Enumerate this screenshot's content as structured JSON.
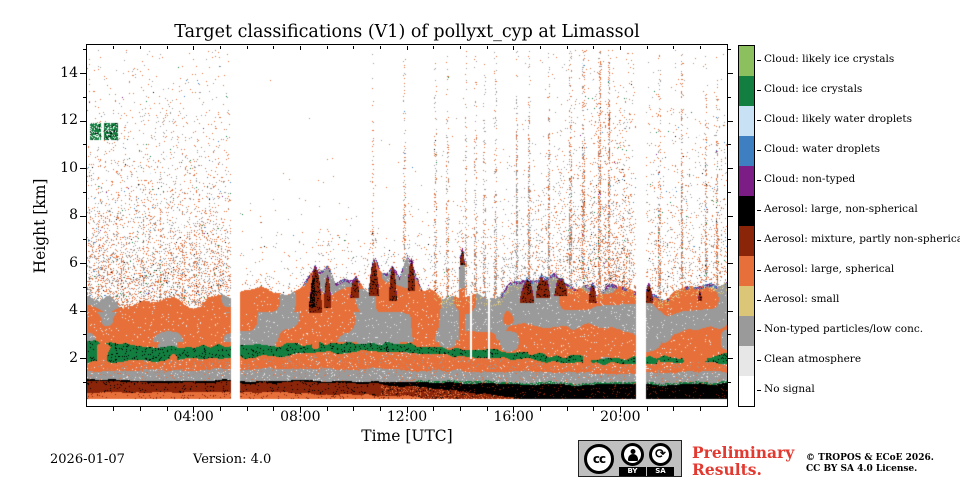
{
  "figure": {
    "title": "Target classifications (V1) of pollyxt_cyp at Limassol",
    "xlabel": "Time [UTC]",
    "ylabel": "Height [km]"
  },
  "footer": {
    "date": "2026-01-07",
    "version_label": "Version: 4.0",
    "preliminary_line1": "Preliminary",
    "preliminary_line2": "Results.",
    "preliminary_color": "#e23a31",
    "copyright_line1": "© TROPOS & ECoE 2026.",
    "copyright_line2": "CC BY SA 4.0 License.",
    "cc": {
      "cc_text": "cc",
      "sa_icon_text": "⟳",
      "by_label": "BY",
      "sa_label": "SA"
    }
  },
  "chart_data": {
    "type": "heatmap",
    "title": "Target classifications (V1) of pollyxt_cyp at Limassol",
    "xlabel": "Time [UTC]",
    "ylabel": "Height [km]",
    "x_axis": {
      "range_hours": [
        0,
        24
      ],
      "major_ticks": [
        {
          "hour": 4,
          "label": "04:00"
        },
        {
          "hour": 8,
          "label": "08:00"
        },
        {
          "hour": 12,
          "label": "12:00"
        },
        {
          "hour": 16,
          "label": "16:00"
        },
        {
          "hour": 20,
          "label": "20:00"
        }
      ],
      "minor_every_hours": 1
    },
    "y_axis": {
      "range_km": [
        0,
        15.2
      ],
      "major_ticks": [
        2,
        4,
        6,
        8,
        10,
        12,
        14
      ],
      "minor_every_km": 1
    },
    "legend_position": "right",
    "grid": false,
    "categories": [
      {
        "label": "Cloud: likely ice crystals",
        "color": "#8cbf5e"
      },
      {
        "label": "Cloud: ice crystals",
        "color": "#127e3f"
      },
      {
        "label": "Cloud: likely water droplets",
        "color": "#c9e1f5"
      },
      {
        "label": "Cloud: water droplets",
        "color": "#3d7fc1"
      },
      {
        "label": "Cloud: non-typed",
        "color": "#7c1d85"
      },
      {
        "label": "Aerosol: large, non-spherical",
        "color": "#000000"
      },
      {
        "label": "Aerosol: mixture, partly non-spherical",
        "color": "#8a2509"
      },
      {
        "label": "Aerosol: large, spherical",
        "color": "#e7703a"
      },
      {
        "label": "Aerosol: small",
        "color": "#dbc577"
      },
      {
        "label": "Non-typed particles/low conc.",
        "color": "#9a9a9a"
      },
      {
        "label": "Clean atmosphere",
        "color": "#e7e7e7"
      },
      {
        "label": "No signal",
        "color": "#ffffff"
      }
    ],
    "data_gaps_hours": [
      [
        5.38,
        5.72
      ],
      [
        20.55,
        20.95
      ]
    ],
    "thin_gaps_hours": [
      [
        14.33,
        14.42
      ],
      [
        15.02,
        15.09
      ]
    ],
    "layers": {
      "floor_km": 0.32,
      "layer_top_km": [
        [
          0,
          4.6
        ],
        [
          1,
          4.4
        ],
        [
          2,
          4.2
        ],
        [
          3,
          4.5
        ],
        [
          4,
          4.3
        ],
        [
          5,
          4.5
        ],
        [
          5.8,
          4.6
        ],
        [
          6.5,
          4.9
        ],
        [
          7,
          4.7
        ],
        [
          7.5,
          4.8
        ],
        [
          8,
          5.0
        ],
        [
          8.5,
          5.8
        ],
        [
          9,
          5.9
        ],
        [
          9.3,
          5.0
        ],
        [
          9.8,
          5.3
        ],
        [
          10.1,
          5.6
        ],
        [
          10.5,
          5.0
        ],
        [
          10.8,
          6.1
        ],
        [
          11,
          5.6
        ],
        [
          11.4,
          5.9
        ],
        [
          11.7,
          5.2
        ],
        [
          12,
          6.2
        ],
        [
          12.3,
          5.6
        ],
        [
          12.6,
          4.9
        ],
        [
          13,
          4.7
        ],
        [
          13.5,
          4.5
        ],
        [
          14,
          4.4
        ],
        [
          14.5,
          4.6
        ],
        [
          15,
          4.7
        ],
        [
          15.5,
          4.8
        ],
        [
          16,
          5.1
        ],
        [
          16.5,
          5.3
        ],
        [
          17,
          5.4
        ],
        [
          17.5,
          5.5
        ],
        [
          18,
          5.3
        ],
        [
          18.5,
          5.1
        ],
        [
          19,
          4.9
        ],
        [
          19.5,
          5.0
        ],
        [
          20,
          5.1
        ],
        [
          20.5,
          4.8
        ],
        [
          21,
          4.7
        ],
        [
          21.5,
          4.6
        ],
        [
          22,
          4.7
        ],
        [
          22.5,
          4.8
        ],
        [
          23,
          5.0
        ],
        [
          23.5,
          5.1
        ],
        [
          24,
          5.3
        ]
      ],
      "green_top_km": [
        [
          0,
          2.75
        ],
        [
          2,
          2.6
        ],
        [
          4,
          2.5
        ],
        [
          6,
          2.55
        ],
        [
          8,
          2.6
        ],
        [
          10,
          2.7
        ],
        [
          12,
          2.6
        ],
        [
          13,
          2.5
        ],
        [
          14,
          2.4
        ],
        [
          15,
          2.35
        ],
        [
          16,
          2.3
        ],
        [
          17,
          2.2
        ],
        [
          18,
          2.1
        ],
        [
          19,
          2.05
        ],
        [
          20,
          2.0
        ],
        [
          21,
          2.05
        ],
        [
          22,
          2.1
        ],
        [
          24,
          2.15
        ]
      ],
      "green_bot_km": [
        [
          0,
          1.9
        ],
        [
          2,
          1.95
        ],
        [
          4,
          2.0
        ],
        [
          6,
          2.1
        ],
        [
          8,
          2.2
        ],
        [
          10,
          2.3
        ],
        [
          12,
          2.25
        ],
        [
          14,
          2.1
        ],
        [
          16,
          2.0
        ],
        [
          18,
          1.85
        ],
        [
          20,
          1.8
        ],
        [
          22,
          1.8
        ],
        [
          24,
          1.85
        ]
      ],
      "gray_top_km": [
        [
          0,
          1.5
        ],
        [
          4,
          1.55
        ],
        [
          8,
          1.6
        ],
        [
          12,
          1.55
        ],
        [
          16,
          1.45
        ],
        [
          20,
          1.4
        ],
        [
          24,
          1.45
        ]
      ],
      "black_top_km": [
        [
          0,
          1.12
        ],
        [
          4,
          1.1
        ],
        [
          8,
          1.08
        ],
        [
          11,
          1.05
        ],
        [
          13,
          1.0
        ],
        [
          15,
          0.98
        ],
        [
          16,
          0.95
        ],
        [
          18,
          0.92
        ],
        [
          20,
          0.9
        ],
        [
          22,
          0.92
        ],
        [
          24,
          0.95
        ]
      ],
      "black_width_km": [
        [
          0,
          0.07
        ],
        [
          8,
          0.08
        ],
        [
          11,
          0.1
        ],
        [
          12,
          0.18
        ],
        [
          13,
          0.25
        ],
        [
          14,
          0.3
        ],
        [
          15,
          0.45
        ],
        [
          16,
          0.6
        ],
        [
          17,
          0.7
        ],
        [
          18,
          0.72
        ],
        [
          20,
          0.7
        ],
        [
          22,
          0.68
        ],
        [
          24,
          0.72
        ]
      ],
      "orange_bottom_top_km": [
        [
          0,
          0.62
        ],
        [
          2,
          0.6
        ],
        [
          4,
          0.58
        ],
        [
          6,
          0.6
        ],
        [
          8,
          0.55
        ],
        [
          10,
          0.5
        ],
        [
          11,
          0.45
        ],
        [
          12,
          0.4
        ],
        [
          12.5,
          0.35
        ],
        [
          13,
          0.3
        ],
        [
          13.5,
          0.25
        ],
        [
          14,
          0.2
        ],
        [
          24,
          0.2
        ]
      ]
    },
    "plumes_maroon": [
      [
        8.3,
        8.8,
        3.9,
        5.9
      ],
      [
        8.85,
        9.15,
        4.1,
        5.5
      ],
      [
        9.85,
        10.2,
        4.5,
        5.5
      ],
      [
        10.55,
        10.95,
        4.6,
        6.1
      ],
      [
        11.3,
        11.6,
        4.4,
        5.9
      ],
      [
        12.0,
        12.3,
        4.8,
        6.3
      ],
      [
        13.95,
        14.15,
        5.9,
        6.7
      ],
      [
        16.2,
        16.75,
        4.3,
        5.4
      ],
      [
        16.8,
        17.35,
        4.5,
        5.6
      ],
      [
        17.5,
        18.0,
        4.6,
        5.5
      ],
      [
        18.8,
        19.1,
        4.3,
        5.1
      ],
      [
        20.9,
        21.2,
        4.3,
        5.2
      ],
      [
        22.9,
        23.05,
        4.4,
        4.9
      ]
    ],
    "cloud_fringe_windows_hours": [
      [
        8,
        13
      ],
      [
        15.5,
        21.8
      ],
      [
        22.4,
        24
      ]
    ],
    "green_cloud_patch": {
      "t0": 0.08,
      "t1": 1.15,
      "h0": 11.2,
      "h1": 11.95,
      "gap": [
        0.52,
        0.63
      ]
    },
    "speckles": {
      "density": [
        [
          0,
          1.0
        ],
        [
          4,
          1.0
        ],
        [
          5.2,
          0.9
        ],
        [
          5.8,
          0.15
        ],
        [
          6.5,
          0.2
        ],
        [
          8,
          0.15
        ],
        [
          10,
          0.18
        ],
        [
          12,
          0.2
        ],
        [
          13,
          0.3
        ],
        [
          14,
          0.35
        ],
        [
          15,
          0.3
        ],
        [
          16,
          0.55
        ],
        [
          17,
          0.6
        ],
        [
          18,
          0.6
        ],
        [
          19,
          0.9
        ],
        [
          19.8,
          1.0
        ],
        [
          20.4,
          0.7
        ],
        [
          21,
          0.4
        ],
        [
          22,
          0.5
        ],
        [
          23,
          0.45
        ],
        [
          24,
          0.5
        ]
      ],
      "scale_km": [
        [
          0,
          3.2
        ],
        [
          5.2,
          3.2
        ],
        [
          5.8,
          1.2
        ],
        [
          13,
          1.3
        ],
        [
          14,
          1.5
        ],
        [
          16,
          1.6
        ],
        [
          19,
          3.5
        ],
        [
          20.4,
          3.5
        ],
        [
          21,
          3.0
        ],
        [
          24,
          3.0
        ]
      ],
      "gray_fraction": [
        [
          0,
          0.35
        ],
        [
          13,
          0.4
        ],
        [
          16,
          0.75
        ],
        [
          19,
          0.3
        ],
        [
          20.5,
          0.35
        ],
        [
          24,
          0.4
        ]
      ],
      "streak_columns_hours": [
        10.7,
        11.9,
        13.05,
        13.5,
        14.2,
        14.55,
        14.9,
        15.3,
        16.1,
        16.55,
        17.3,
        18.1,
        18.6,
        19.2,
        19.55,
        21.45,
        22.3,
        23.2,
        23.6
      ]
    }
  }
}
